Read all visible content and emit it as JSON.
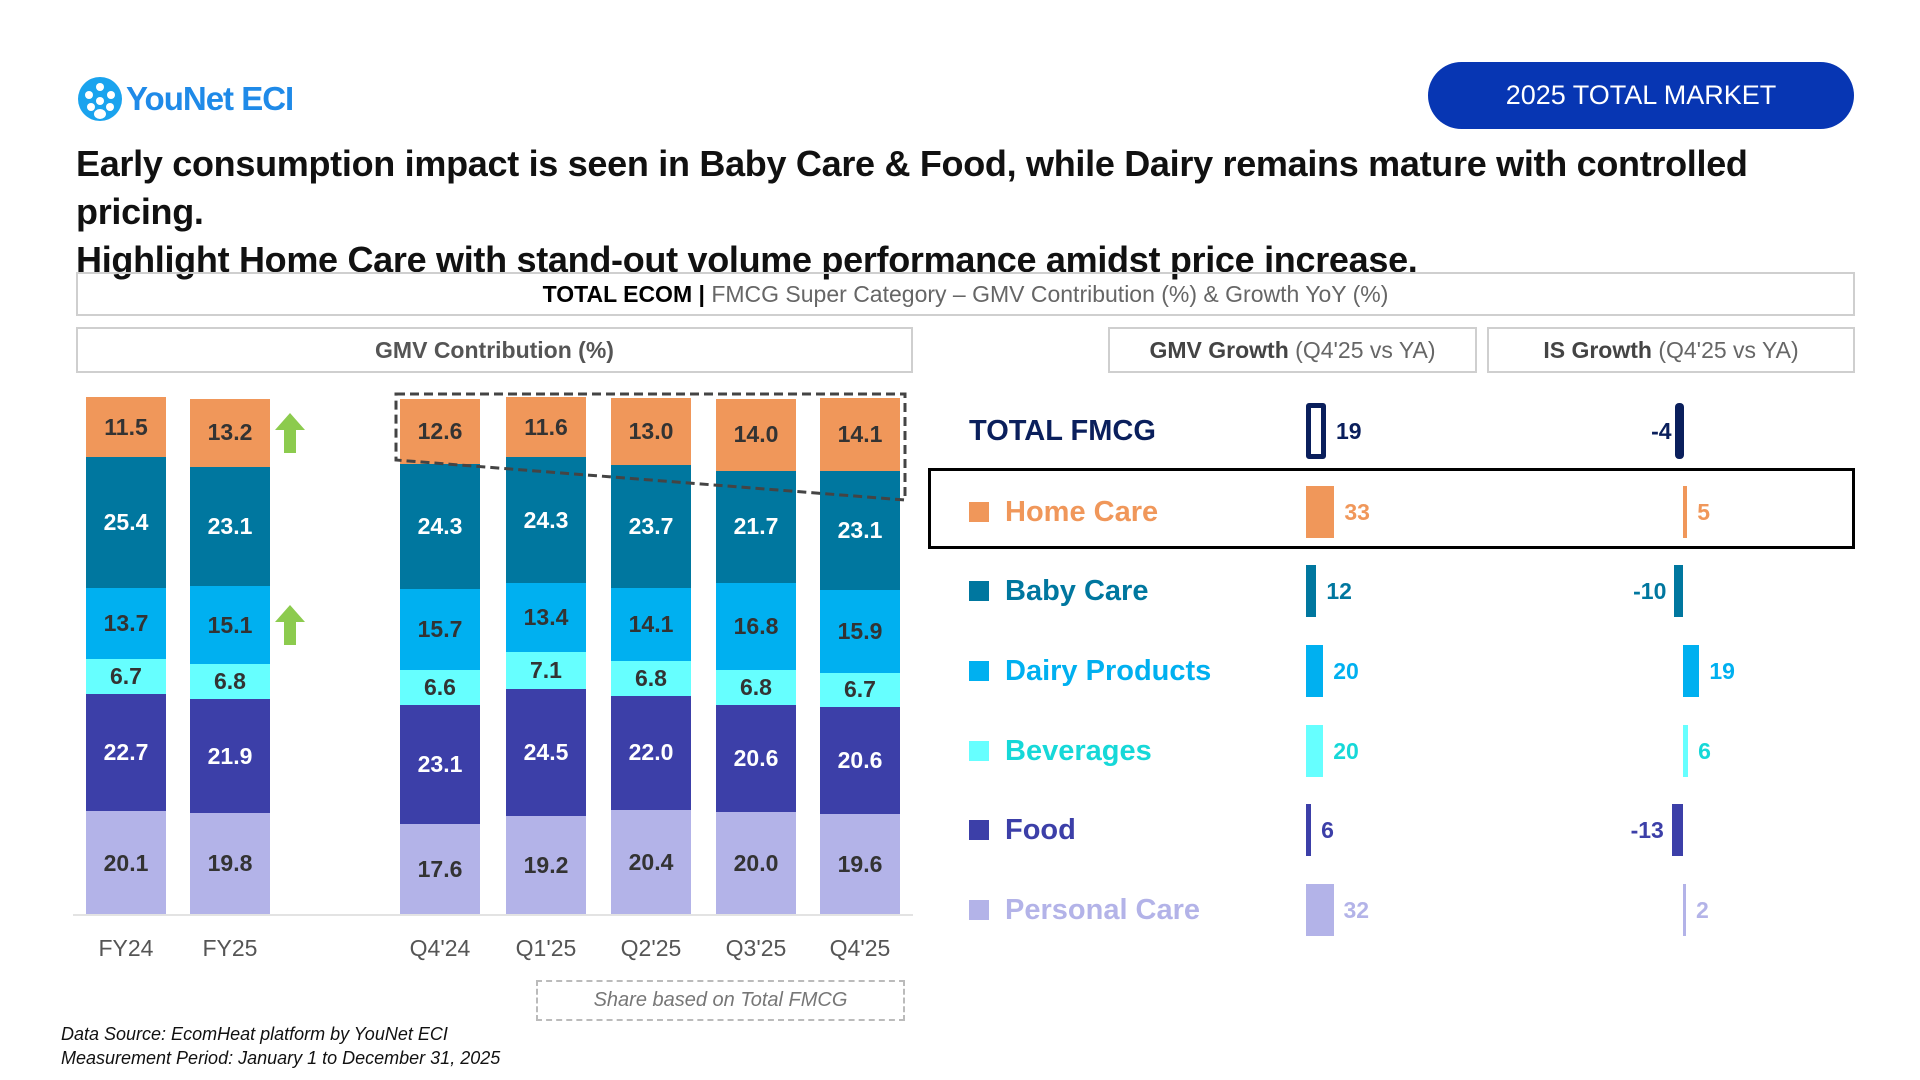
{
  "brand": {
    "logo_text": "YouNet ECI"
  },
  "badge": "2025 TOTAL MARKET",
  "headline": {
    "line1": "Early consumption impact is seen in Baby Care & Food, while Dairy remains mature with controlled pricing.",
    "line2": "Highlight Home Care with stand-out volume performance amidst price increase."
  },
  "section_header": {
    "bold": "TOTAL ECOM |",
    "rest": " FMCG Super Category – GMV Contribution (%) & Growth YoY (%)"
  },
  "colors": {
    "Home Care": "#F0975A",
    "Baby Care": "#00779F",
    "Dairy Products": "#00B0F0",
    "Beverages": "#66FFFF",
    "Food": "#3C3FA8",
    "Personal Care": "#B3B3E8",
    "Total": "#0A1F5C",
    "highlight_arrow": "#8CCB4E",
    "badge": "#0736B3"
  },
  "chart_data": [
    {
      "type": "bar",
      "stacked": true,
      "title": "GMV Contribution (%)",
      "categories": [
        "FY24",
        "FY25",
        "Q4'24",
        "Q1'25",
        "Q2'25",
        "Q3'25",
        "Q4'25"
      ],
      "series": [
        {
          "name": "Personal Care",
          "values": [
            20.1,
            19.8,
            17.6,
            19.2,
            20.4,
            20.0,
            19.6
          ]
        },
        {
          "name": "Food",
          "values": [
            22.7,
            21.9,
            23.1,
            24.5,
            22.0,
            20.6,
            20.6
          ]
        },
        {
          "name": "Beverages",
          "values": [
            6.7,
            6.8,
            6.6,
            7.1,
            6.8,
            6.8,
            6.7
          ]
        },
        {
          "name": "Dairy Products",
          "values": [
            13.7,
            15.1,
            15.7,
            13.4,
            14.1,
            16.8,
            15.9
          ]
        },
        {
          "name": "Baby Care",
          "values": [
            25.4,
            23.1,
            24.3,
            24.3,
            23.7,
            21.7,
            23.1
          ]
        },
        {
          "name": "Home Care",
          "values": [
            11.5,
            13.2,
            12.6,
            11.6,
            13.0,
            14.0,
            14.1
          ]
        }
      ],
      "up_arrows": [
        {
          "category": "FY25",
          "series": "Home Care"
        },
        {
          "category": "FY25",
          "series": "Dairy Products"
        }
      ],
      "annotation": "Share based on Total FMCG",
      "ylim": [
        0,
        100
      ]
    },
    {
      "type": "bar",
      "orientation": "horizontal",
      "title_bold": "GMV Growth",
      "title_rest": " (Q4'25 vs YA)",
      "categories": [
        "TOTAL FMCG",
        "Home Care",
        "Baby Care",
        "Dairy Products",
        "Beverages",
        "Food",
        "Personal Care"
      ],
      "values": [
        19,
        33,
        12,
        20,
        20,
        6,
        32
      ]
    },
    {
      "type": "bar",
      "orientation": "horizontal",
      "title_bold": "IS Growth",
      "title_rest": " (Q4'25 vs YA)",
      "categories": [
        "TOTAL FMCG",
        "Home Care",
        "Baby Care",
        "Dairy Products",
        "Beverages",
        "Food",
        "Personal Care"
      ],
      "values": [
        -4,
        5,
        -10,
        19,
        6,
        -13,
        2
      ]
    }
  ],
  "highlighted_row": "Home Care",
  "footer": {
    "source": "Data Source: EcomHeat platform by YouNet ECI",
    "period": "Measurement Period: January 1 to December 31, 2025"
  }
}
